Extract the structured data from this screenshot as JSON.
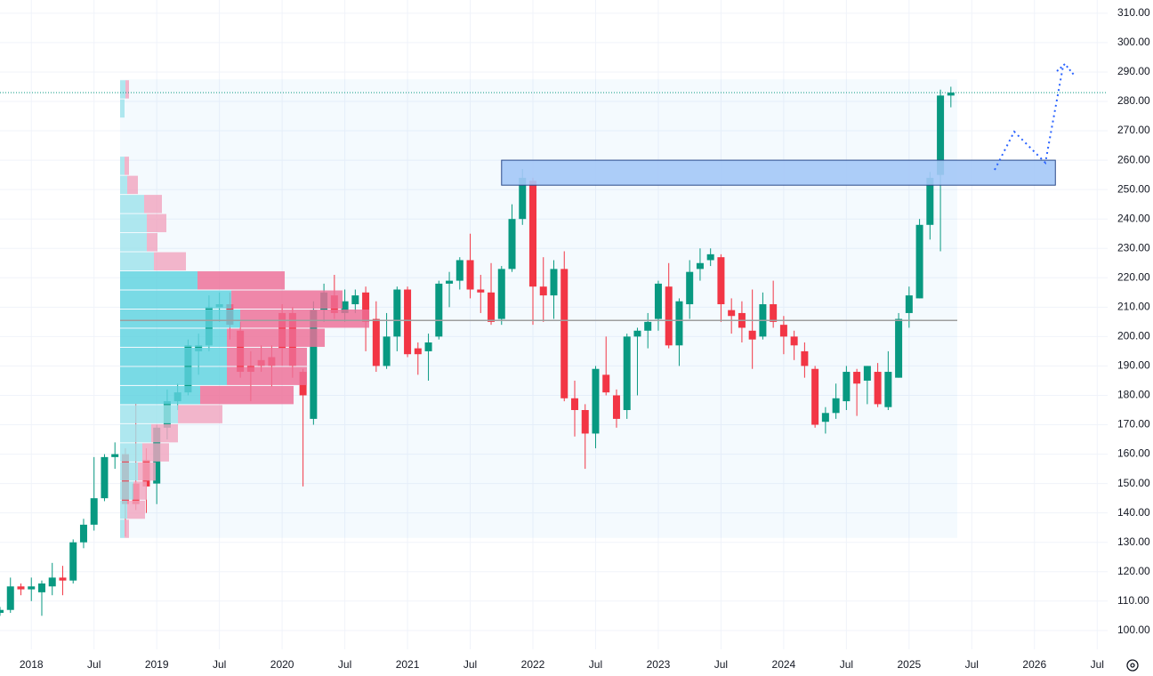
{
  "chart_data": {
    "type": "candlestick",
    "x": [
      "2017-10",
      "2017-11",
      "2017-12",
      "2018-01",
      "2018-02",
      "2018-03",
      "2018-04",
      "2018-05",
      "2018-06",
      "2018-07",
      "2018-08",
      "2018-09",
      "2018-10",
      "2018-11",
      "2018-12",
      "2019-01",
      "2019-02",
      "2019-03",
      "2019-04",
      "2019-05",
      "2019-06",
      "2019-07",
      "2019-08",
      "2019-09",
      "2019-10",
      "2019-11",
      "2019-12",
      "2020-01",
      "2020-02",
      "2020-03",
      "2020-04",
      "2020-05",
      "2020-06",
      "2020-07",
      "2020-08",
      "2020-09",
      "2020-10",
      "2020-11",
      "2020-12",
      "2021-01",
      "2021-02",
      "2021-03",
      "2021-04",
      "2021-05",
      "2021-06",
      "2021-07",
      "2021-08",
      "2021-09",
      "2021-10",
      "2021-11",
      "2021-12",
      "2022-01",
      "2022-02",
      "2022-03",
      "2022-04",
      "2022-05",
      "2022-06",
      "2022-07",
      "2022-08",
      "2022-09",
      "2022-10",
      "2022-11",
      "2022-12",
      "2023-01",
      "2023-02",
      "2023-03",
      "2023-04",
      "2023-05",
      "2023-06",
      "2023-07",
      "2023-08",
      "2023-09",
      "2023-10",
      "2023-11",
      "2023-12",
      "2024-01",
      "2024-02",
      "2024-03",
      "2024-04",
      "2024-05",
      "2024-06",
      "2024-07",
      "2024-08",
      "2024-09",
      "2024-10",
      "2024-11",
      "2024-12",
      "2025-01",
      "2025-02",
      "2025-03",
      "2025-04",
      "2025-05"
    ],
    "open": [
      106,
      107,
      115,
      114,
      113,
      115,
      118,
      117,
      130,
      136,
      145,
      159,
      160,
      150,
      158,
      150,
      169,
      178,
      181,
      195,
      197,
      210,
      211,
      202,
      190,
      192,
      193,
      208,
      208,
      188,
      172,
      209,
      214,
      208,
      211,
      215,
      206,
      190,
      200,
      216,
      196,
      195,
      200,
      218,
      219,
      226,
      216,
      215,
      206,
      223,
      240,
      253,
      217,
      214,
      223,
      179,
      175,
      167,
      187,
      180,
      175,
      200,
      202,
      206,
      217,
      197,
      211,
      223,
      226,
      227,
      209,
      208,
      202,
      200,
      211,
      204,
      200,
      195,
      189,
      171,
      174,
      178,
      188,
      185,
      188,
      176,
      186,
      208,
      213,
      238,
      255,
      282
    ],
    "high": [
      108,
      118,
      116,
      118,
      117,
      123,
      122,
      131,
      138,
      159,
      160,
      164,
      162,
      177,
      162,
      170,
      182,
      184,
      199,
      201,
      214,
      215,
      215,
      205,
      195,
      197,
      197,
      211,
      210,
      189,
      212,
      218,
      221,
      216,
      216,
      217,
      212,
      208,
      217,
      217,
      198,
      201,
      219,
      222,
      227,
      235,
      221,
      225,
      224,
      245,
      257,
      254,
      227,
      226,
      229,
      185,
      177,
      190,
      200,
      182,
      201,
      203,
      208,
      219,
      225,
      213,
      226,
      230,
      230,
      228,
      213,
      212,
      216,
      215,
      219,
      207,
      202,
      198,
      190,
      176,
      184,
      190,
      189,
      190,
      191,
      195,
      208,
      217,
      240,
      256,
      284,
      285
    ],
    "low": [
      105,
      106,
      112,
      110,
      105,
      112,
      112,
      116,
      128,
      134,
      144,
      155,
      132,
      141,
      140,
      143,
      165,
      175,
      180,
      187,
      195,
      205,
      199,
      186,
      178,
      188,
      183,
      190,
      186,
      149,
      170,
      205,
      206,
      205,
      208,
      195,
      188,
      189,
      195,
      193,
      187,
      185,
      199,
      210,
      216,
      213,
      208,
      204,
      204,
      222,
      238,
      204,
      205,
      206,
      178,
      166,
      155,
      162,
      180,
      169,
      172,
      180,
      196,
      202,
      196,
      190,
      206,
      219,
      224,
      205,
      201,
      198,
      189,
      199,
      203,
      194,
      192,
      186,
      169,
      167,
      172,
      175,
      173,
      177,
      176,
      175,
      186,
      203,
      213,
      233,
      229,
      278
    ],
    "close": [
      107,
      115,
      114,
      115,
      116,
      118,
      117,
      130,
      136,
      145,
      159,
      160,
      143,
      143,
      149,
      169,
      178,
      181,
      197,
      197,
      210,
      211,
      204,
      188,
      188,
      190,
      190,
      196,
      190,
      180,
      209,
      215,
      208,
      212,
      214,
      205,
      190,
      200,
      216,
      194,
      194,
      198,
      218,
      219,
      226,
      216,
      215,
      205,
      223,
      240,
      254,
      217,
      214,
      223,
      179,
      175,
      167,
      189,
      181,
      172,
      200,
      202,
      205,
      218,
      197,
      212,
      222,
      225,
      228,
      211,
      207,
      203,
      199,
      211,
      205,
      200,
      197,
      190,
      170,
      174,
      179,
      188,
      184,
      190,
      177,
      188,
      206,
      214,
      238,
      254,
      282,
      283
    ],
    "up_color": "#089981",
    "down_color": "#f23645",
    "xlim": [
      "2017-10",
      "2026-08"
    ],
    "xticks": [
      {
        "value": "2018-01",
        "label": "2018"
      },
      {
        "value": "2018-07",
        "label": "Jul"
      },
      {
        "value": "2019-01",
        "label": "2019"
      },
      {
        "value": "2019-07",
        "label": "Jul"
      },
      {
        "value": "2020-01",
        "label": "2020"
      },
      {
        "value": "2020-07",
        "label": "Jul"
      },
      {
        "value": "2021-01",
        "label": "2021"
      },
      {
        "value": "2021-07",
        "label": "Jul"
      },
      {
        "value": "2022-01",
        "label": "2022"
      },
      {
        "value": "2022-07",
        "label": "Jul"
      },
      {
        "value": "2023-01",
        "label": "2023"
      },
      {
        "value": "2023-07",
        "label": "Jul"
      },
      {
        "value": "2024-01",
        "label": "2024"
      },
      {
        "value": "2024-07",
        "label": "Jul"
      },
      {
        "value": "2025-01",
        "label": "2025"
      },
      {
        "value": "2025-07",
        "label": "Jul"
      },
      {
        "value": "2026-01",
        "label": "2026"
      },
      {
        "value": "2026-07",
        "label": "Jul"
      }
    ],
    "ylim": [
      93.6,
      314.5
    ],
    "yticks": [
      {
        "value": 100,
        "label": "100.00"
      },
      {
        "value": 110,
        "label": "110.00"
      },
      {
        "value": 120,
        "label": "120.00"
      },
      {
        "value": 130,
        "label": "130.00"
      },
      {
        "value": 140,
        "label": "140.00"
      },
      {
        "value": 150,
        "label": "150.00"
      },
      {
        "value": 160,
        "label": "160.00"
      },
      {
        "value": 170,
        "label": "170.00"
      },
      {
        "value": 180,
        "label": "180.00"
      },
      {
        "value": 190,
        "label": "190.00"
      },
      {
        "value": 200,
        "label": "200.00"
      },
      {
        "value": 210,
        "label": "210.00"
      },
      {
        "value": 220,
        "label": "220.00"
      },
      {
        "value": 230,
        "label": "230.00"
      },
      {
        "value": 240,
        "label": "240.00"
      },
      {
        "value": 250,
        "label": "250.00"
      },
      {
        "value": 260,
        "label": "260.00"
      },
      {
        "value": 270,
        "label": "270.00"
      },
      {
        "value": 280,
        "label": "280.00"
      },
      {
        "value": 290,
        "label": "290.00"
      },
      {
        "value": 300,
        "label": "300.00"
      },
      {
        "value": 310,
        "label": "310.00"
      }
    ],
    "grid": true,
    "volume_profile": {
      "bins": [
        131.5,
        138,
        144.5,
        151,
        157.5,
        164,
        170.5,
        177,
        183.5,
        190,
        196.5,
        203,
        209.5,
        216,
        222.5,
        229,
        235.5,
        242,
        248.5,
        255,
        261.5,
        268,
        274.5,
        281,
        287.5
      ],
      "up": [
        5,
        8,
        15,
        20,
        25,
        35,
        65,
        90,
        120,
        120,
        120,
        135,
        125,
        87,
        38,
        30,
        30,
        27,
        8,
        5,
        0,
        0,
        5,
        6
      ],
      "down": [
        5,
        20,
        15,
        20,
        30,
        30,
        50,
        105,
        90,
        90,
        110,
        145,
        125,
        98,
        36,
        12,
        22,
        20,
        12,
        5,
        0,
        0,
        0,
        4
      ],
      "value_area": [
        177,
        222.5
      ],
      "poc": 205.5,
      "up_color": "#5fd3e0",
      "up_color_light": "#9fe4ec",
      "down_color": "#ef6f97",
      "down_color_light": "#f2a6c0"
    },
    "zone": {
      "low": 251.5,
      "high": 260,
      "from": "2021-10",
      "to": "2026-03",
      "color": "#a4c8f7"
    }
  }
}
